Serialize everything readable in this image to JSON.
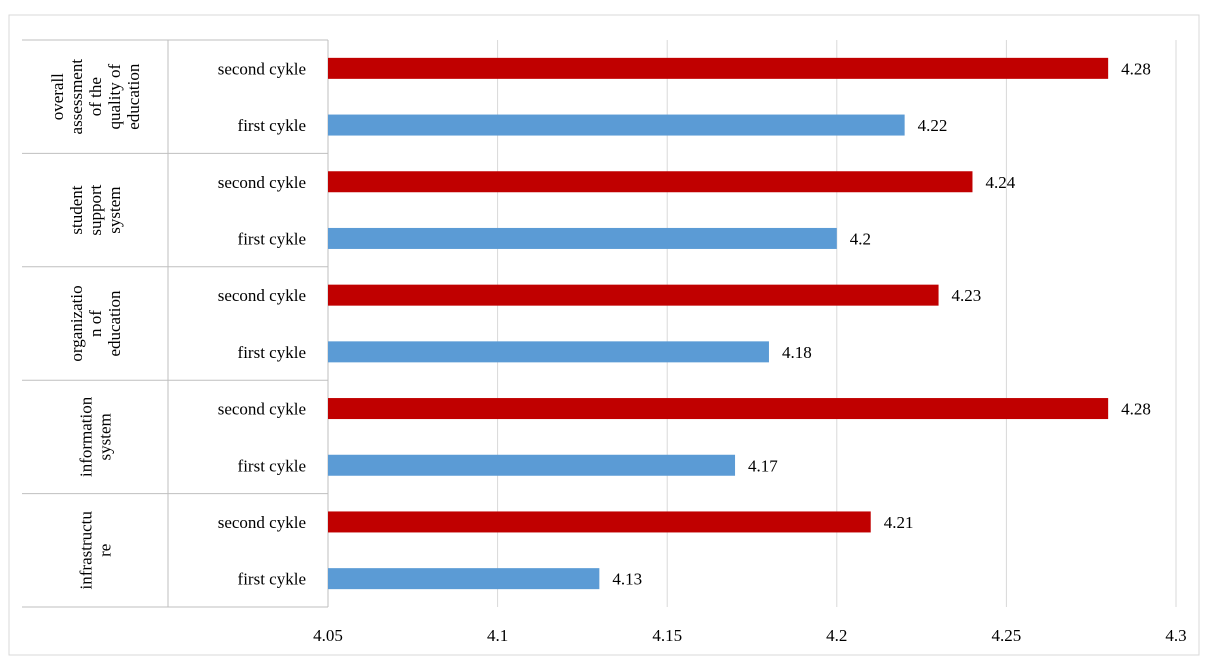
{
  "chart_data": {
    "type": "bar",
    "orientation": "horizontal",
    "title": "",
    "xlim": [
      4.05,
      4.3
    ],
    "x_ticks": [
      "4.05",
      "4.1",
      "4.15",
      "4.2",
      "4.25",
      "4.3"
    ],
    "grid": "vertical",
    "legend": "none",
    "colors": {
      "second cykle": "#c00000",
      "first cykle": "#5b9bd5"
    },
    "groups": [
      {
        "label": "overall assessment of the quality of education",
        "label_lines": [
          "overall",
          "assessment",
          "of the",
          "quality of",
          "education"
        ],
        "bars": [
          {
            "label": "second cykle",
            "value": 4.28
          },
          {
            "label": "first cykle",
            "value": 4.22
          }
        ]
      },
      {
        "label": "student support system",
        "label_lines": [
          "student",
          "support",
          "system"
        ],
        "bars": [
          {
            "label": "second cykle",
            "value": 4.24
          },
          {
            "label": "first cykle",
            "value": 4.2
          }
        ]
      },
      {
        "label": "organization of education",
        "label_lines": [
          "organizatio",
          "n of",
          "education"
        ],
        "bars": [
          {
            "label": "second cykle",
            "value": 4.23
          },
          {
            "label": "first cykle",
            "value": 4.18
          }
        ]
      },
      {
        "label": "information system",
        "label_lines": [
          "information",
          "system"
        ],
        "bars": [
          {
            "label": "second cykle",
            "value": 4.28
          },
          {
            "label": "first cykle",
            "value": 4.17
          }
        ]
      },
      {
        "label": "infrastructure",
        "label_lines": [
          "infrastructu",
          "re"
        ],
        "bars": [
          {
            "label": "second cykle",
            "value": 4.21
          },
          {
            "label": "first cykle",
            "value": 4.13
          }
        ]
      }
    ]
  }
}
